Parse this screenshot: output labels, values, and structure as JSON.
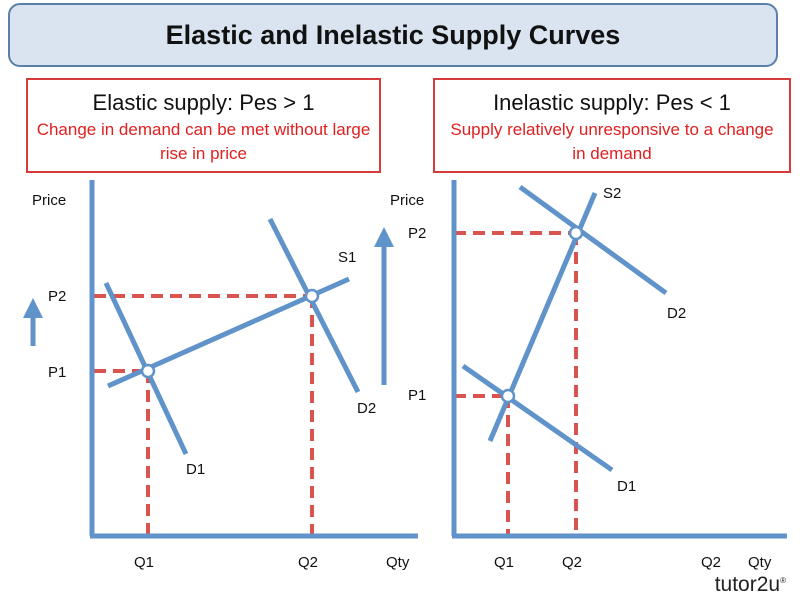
{
  "title": "Elastic and Inelastic Supply Curves",
  "left_panel": {
    "heading": "Elastic supply: Pes > 1",
    "description": "Change in demand can be met without large rise in price",
    "y_label": "Price",
    "x_label": "Qty",
    "labels": {
      "p1": "P1",
      "p2": "P2",
      "q1": "Q1",
      "q2": "Q2",
      "s1": "S1",
      "d1": "D1",
      "d2": "D2"
    }
  },
  "right_panel": {
    "heading": "Inelastic supply: Pes < 1",
    "description": "Supply relatively unresponsive to a change in demand",
    "y_label": "Price",
    "x_label": "Qty",
    "labels": {
      "p1": "P1",
      "p2": "P2",
      "q1": "Q1",
      "q2": "Q2",
      "q2_extra": "Q2",
      "s2": "S2",
      "d1": "D1",
      "d2": "D2"
    }
  },
  "logo": {
    "text": "tutor2u",
    "mark": "®"
  },
  "colors": {
    "curve": "#5f93c9",
    "guide": "#d9534f",
    "box_border": "#d63b3b",
    "desc_text": "#e02020",
    "title_bg": "#d9e4f0"
  }
}
